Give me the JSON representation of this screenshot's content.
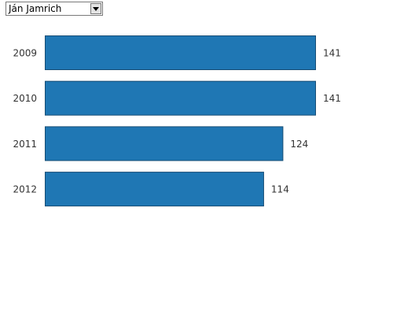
{
  "selector": {
    "selected_value": "Ján Jamrich",
    "icon": "chevron-down-icon"
  },
  "chart_data": {
    "type": "bar",
    "orientation": "horizontal",
    "categories": [
      "2009",
      "2010",
      "2011",
      "2012"
    ],
    "values": [
      141,
      141,
      124,
      114
    ],
    "xlim": [
      0,
      141
    ],
    "bar_color": "#1f77b4",
    "bar_stroke": "#174d75",
    "grid": false,
    "legend": "none"
  }
}
